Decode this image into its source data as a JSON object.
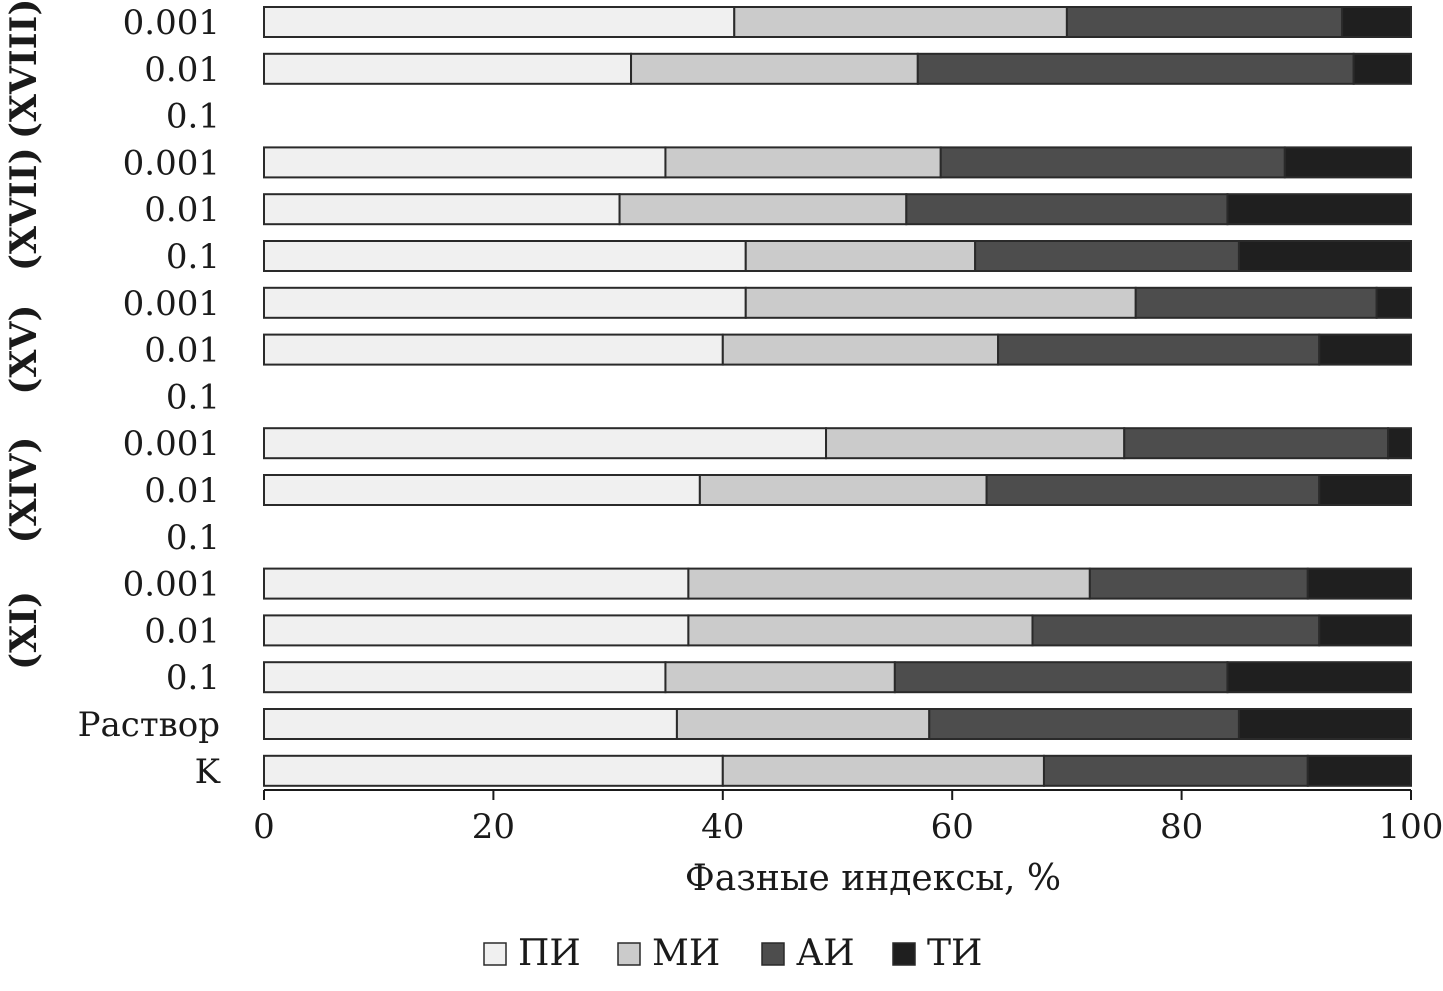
{
  "chart_data": {
    "type": "bar",
    "orientation": "horizontal",
    "stacked": true,
    "xlabel": "Фазные индексы, %",
    "xlim": [
      0,
      100
    ],
    "xticks": [
      0,
      20,
      40,
      60,
      80,
      100
    ],
    "legend_position": "bottom",
    "categories": [
      "0.001",
      "0.01",
      "0.1",
      "0.001",
      "0.01",
      "0.1",
      "0.001",
      "0.01",
      "0.1",
      "0.001",
      "0.01",
      "0.1",
      "0.001",
      "0.01",
      "0.1",
      "Раствор",
      "K"
    ],
    "groups": [
      {
        "label": "(XVIII)",
        "categories": [
          "0.001",
          "0.01",
          "0.1"
        ]
      },
      {
        "label": "(XVII)",
        "categories": [
          "0.001",
          "0.01",
          "0.1"
        ]
      },
      {
        "label": "(XV)",
        "categories": [
          "0.001",
          "0.01",
          "0.1"
        ]
      },
      {
        "label": "(XIV)",
        "categories": [
          "0.001",
          "0.01",
          "0.1"
        ]
      },
      {
        "label": "(XI)",
        "categories": [
          "0.001",
          "0.01",
          "0.1"
        ]
      }
    ],
    "series": [
      {
        "name": "ПИ",
        "color": "#f0f0f0",
        "values": [
          41,
          32,
          0,
          35,
          31,
          42,
          42,
          40,
          0,
          49,
          38,
          0,
          37,
          37,
          35,
          36,
          40
        ]
      },
      {
        "name": "МИ",
        "color": "#cbcbcb",
        "values": [
          29,
          25,
          0,
          24,
          25,
          20,
          34,
          24,
          0,
          26,
          25,
          0,
          35,
          30,
          20,
          22,
          28
        ]
      },
      {
        "name": "АИ",
        "color": "#4d4d4d",
        "values": [
          24,
          38,
          0,
          30,
          28,
          23,
          21,
          28,
          0,
          23,
          29,
          0,
          19,
          25,
          29,
          27,
          23
        ]
      },
      {
        "name": "ТИ",
        "color": "#1f1f1f",
        "values": [
          6,
          5,
          0,
          11,
          16,
          15,
          3,
          8,
          0,
          2,
          8,
          0,
          9,
          8,
          16,
          15,
          9
        ]
      }
    ]
  }
}
